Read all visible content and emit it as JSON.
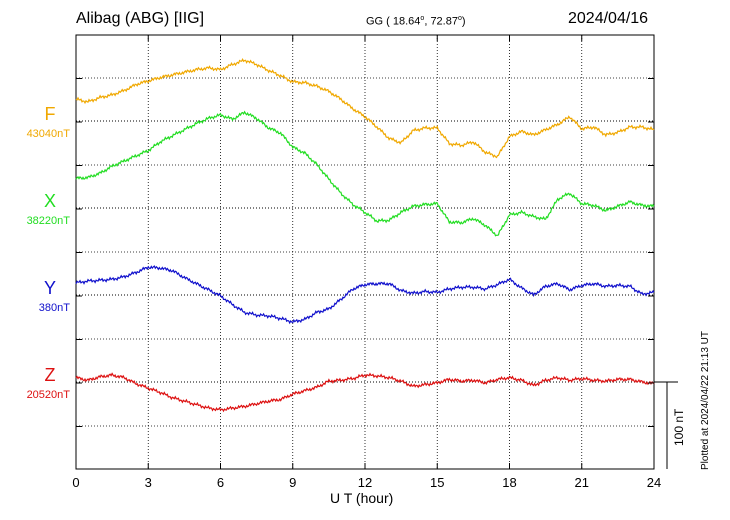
{
  "header": {
    "station": "Alibag (ABG)  [IIG]",
    "coords_prefix": "GG ( 18.64",
    "coords_mid": ",  72.87",
    "coords_suffix": ")",
    "degree": "o",
    "date": "2024/04/16"
  },
  "side_text": {
    "plotted": "Plotted at 2024/04/22 21:13 UT",
    "scale": "100 nT"
  },
  "chart_data": {
    "type": "line",
    "xlabel": "U T (hour)",
    "xlim": [
      0,
      24
    ],
    "xticks": [
      "0",
      "3",
      "6",
      "9",
      "12",
      "15",
      "18",
      "21",
      "24"
    ],
    "grid": true,
    "scale_bar_nT": 100,
    "series": [
      {
        "name": "F",
        "baseline": "43040nT",
        "color": "#f0a800",
        "offset_nT": 0,
        "x": [
          0,
          0.5,
          1,
          1.5,
          2,
          2.5,
          3,
          3.5,
          4,
          4.5,
          5,
          5.5,
          6,
          6.5,
          7,
          7.5,
          8,
          8.5,
          9,
          9.5,
          10,
          10.5,
          11,
          11.5,
          12,
          12.5,
          13,
          13.5,
          14,
          14.5,
          15,
          15.5,
          16,
          16.5,
          17,
          17.5,
          18,
          18.5,
          19,
          19.5,
          20,
          20.5,
          21,
          21.5,
          22,
          22.5,
          23,
          23.5,
          24
        ],
        "values": [
          25,
          22,
          27,
          30,
          35,
          42,
          46,
          50,
          53,
          56,
          59,
          61,
          59,
          65,
          70,
          65,
          58,
          52,
          45,
          44,
          40,
          34,
          25,
          14,
          5,
          -7,
          -20,
          -25,
          -11,
          -8,
          -8,
          -26,
          -28,
          -24,
          -36,
          -41,
          -18,
          -12,
          -16,
          -10,
          -4,
          5,
          -9,
          -7,
          -16,
          -13,
          -7,
          -7,
          -10
        ]
      },
      {
        "name": "X",
        "baseline": "38220nT",
        "color": "#22dd22",
        "offset_nT": 0,
        "x": [
          0,
          0.5,
          1,
          1.5,
          2,
          2.5,
          3,
          3.5,
          4,
          4.5,
          5,
          5.5,
          6,
          6.5,
          7,
          7.5,
          8,
          8.5,
          9,
          9.5,
          10,
          10.5,
          11,
          11.5,
          12,
          12.5,
          13,
          13.5,
          14,
          14.5,
          15,
          15.5,
          16,
          16.5,
          17,
          17.5,
          18,
          18.5,
          19,
          19.5,
          20,
          20.5,
          21,
          21.5,
          22,
          22.5,
          23,
          23.5,
          24
        ],
        "values": [
          34,
          35,
          40,
          48,
          54,
          60,
          66,
          76,
          83,
          90,
          97,
          103,
          107,
          102,
          110,
          103,
          92,
          86,
          70,
          63,
          50,
          33,
          17,
          4,
          -5,
          -15,
          -14,
          -5,
          2,
          4,
          5,
          -16,
          -17,
          -12,
          -20,
          -32,
          -8,
          -5,
          -10,
          -13,
          10,
          17,
          5,
          3,
          -3,
          2,
          7,
          3,
          2
        ]
      },
      {
        "name": "Y",
        "baseline": "380nT",
        "color": "#1010cc",
        "offset_nT": 0,
        "x": [
          0,
          0.5,
          1,
          1.5,
          2,
          2.5,
          3,
          3.5,
          4,
          4.5,
          5,
          5.5,
          6,
          6.5,
          7,
          7.5,
          8,
          8.5,
          9,
          9.5,
          10,
          10.5,
          11,
          11.5,
          12,
          12.5,
          13,
          13.5,
          14,
          14.5,
          15,
          15.5,
          16,
          16.5,
          17,
          17.5,
          18,
          18.5,
          19,
          19.5,
          20,
          20.5,
          21,
          21.5,
          22,
          22.5,
          23,
          23.5,
          24
        ],
        "values": [
          14,
          16,
          17,
          18,
          21,
          26,
          32,
          31,
          28,
          20,
          13,
          6,
          -1,
          -11,
          -20,
          -23,
          -24,
          -27,
          -31,
          -28,
          -20,
          -16,
          -5,
          7,
          12,
          13,
          13,
          5,
          2,
          4,
          3,
          7,
          9,
          9,
          7,
          12,
          18,
          8,
          0,
          10,
          13,
          6,
          11,
          13,
          10,
          11,
          10,
          1,
          3
        ]
      },
      {
        "name": "Z",
        "baseline": "20520nT",
        "color": "#dd1111",
        "offset_nT": 0,
        "x": [
          0,
          0.5,
          1,
          1.5,
          2,
          2.5,
          3,
          3.5,
          4,
          4.5,
          5,
          5.5,
          6,
          6.5,
          7,
          7.5,
          8,
          8.5,
          9,
          9.5,
          10,
          10.5,
          11,
          11.5,
          12,
          12.5,
          13,
          13.5,
          14,
          14.5,
          15,
          15.5,
          16,
          16.5,
          17,
          17.5,
          18,
          18.5,
          19,
          19.5,
          20,
          20.5,
          21,
          21.5,
          22,
          22.5,
          23,
          23.5,
          24
        ],
        "values": [
          5,
          2,
          6,
          8,
          5,
          -2,
          -7,
          -12,
          -18,
          -22,
          -26,
          -30,
          -32,
          -30,
          -28,
          -25,
          -22,
          -20,
          -14,
          -10,
          -6,
          1,
          2,
          4,
          8,
          7,
          5,
          1,
          -5,
          -3,
          -1,
          3,
          1,
          2,
          -1,
          3,
          5,
          2,
          -4,
          2,
          5,
          2,
          4,
          2,
          1,
          3,
          3,
          0,
          -2
        ]
      }
    ]
  }
}
